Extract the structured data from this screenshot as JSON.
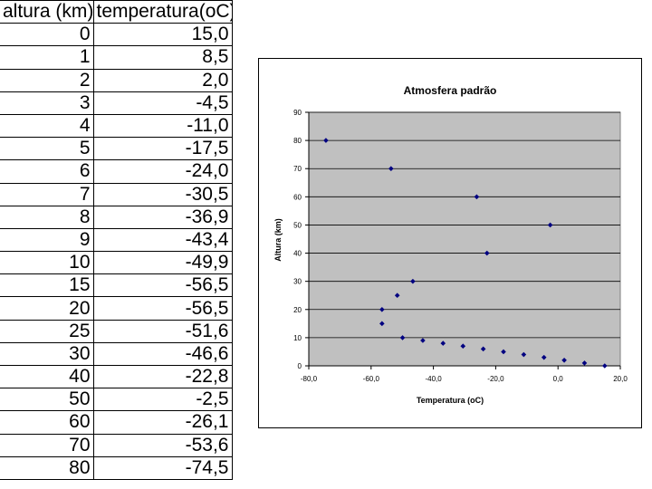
{
  "table": {
    "headers": [
      "altura (km)",
      "temperatura(oC)"
    ],
    "rows": [
      [
        "0",
        "15,0"
      ],
      [
        "1",
        "8,5"
      ],
      [
        "2",
        "2,0"
      ],
      [
        "3",
        "-4,5"
      ],
      [
        "4",
        "-11,0"
      ],
      [
        "5",
        "-17,5"
      ],
      [
        "6",
        "-24,0"
      ],
      [
        "7",
        "-30,5"
      ],
      [
        "8",
        "-36,9"
      ],
      [
        "9",
        "-43,4"
      ],
      [
        "10",
        "-49,9"
      ],
      [
        "15",
        "-56,5"
      ],
      [
        "20",
        "-56,5"
      ],
      [
        "25",
        "-51,6"
      ],
      [
        "30",
        "-46,6"
      ],
      [
        "40",
        "-22,8"
      ],
      [
        "50",
        "-2,5"
      ],
      [
        "60",
        "-26,1"
      ],
      [
        "70",
        "-53,6"
      ],
      [
        "80",
        "-74,5"
      ]
    ]
  },
  "colors": {
    "plot_bg": "#c0c0c0",
    "marker": "#000080",
    "grid": "#000000"
  },
  "chart_data": {
    "type": "scatter",
    "title": "Atmosfera padrão",
    "xlabel": "Temperatura (oC)",
    "ylabel": "Altura (km)",
    "xlim": [
      -80,
      20
    ],
    "ylim": [
      0,
      90
    ],
    "xticks": [
      "-80,0",
      "-60,0",
      "-40,0",
      "-20,0",
      "0,0",
      "20,0"
    ],
    "yticks": [
      "0",
      "10",
      "20",
      "30",
      "40",
      "50",
      "60",
      "70",
      "80",
      "90"
    ],
    "grid": "horizontal",
    "legend": "none",
    "series": [
      {
        "x": [
          15.0,
          8.5,
          2.0,
          -4.5,
          -11.0,
          -17.5,
          -24.0,
          -30.5,
          -36.9,
          -43.4,
          -49.9,
          -56.5,
          -56.5,
          -51.6,
          -46.6,
          -22.8,
          -2.5,
          -26.1,
          -53.6,
          -74.5
        ],
        "y": [
          0,
          1,
          2,
          3,
          4,
          5,
          6,
          7,
          8,
          9,
          10,
          15,
          20,
          25,
          30,
          40,
          50,
          60,
          70,
          80
        ]
      }
    ]
  }
}
